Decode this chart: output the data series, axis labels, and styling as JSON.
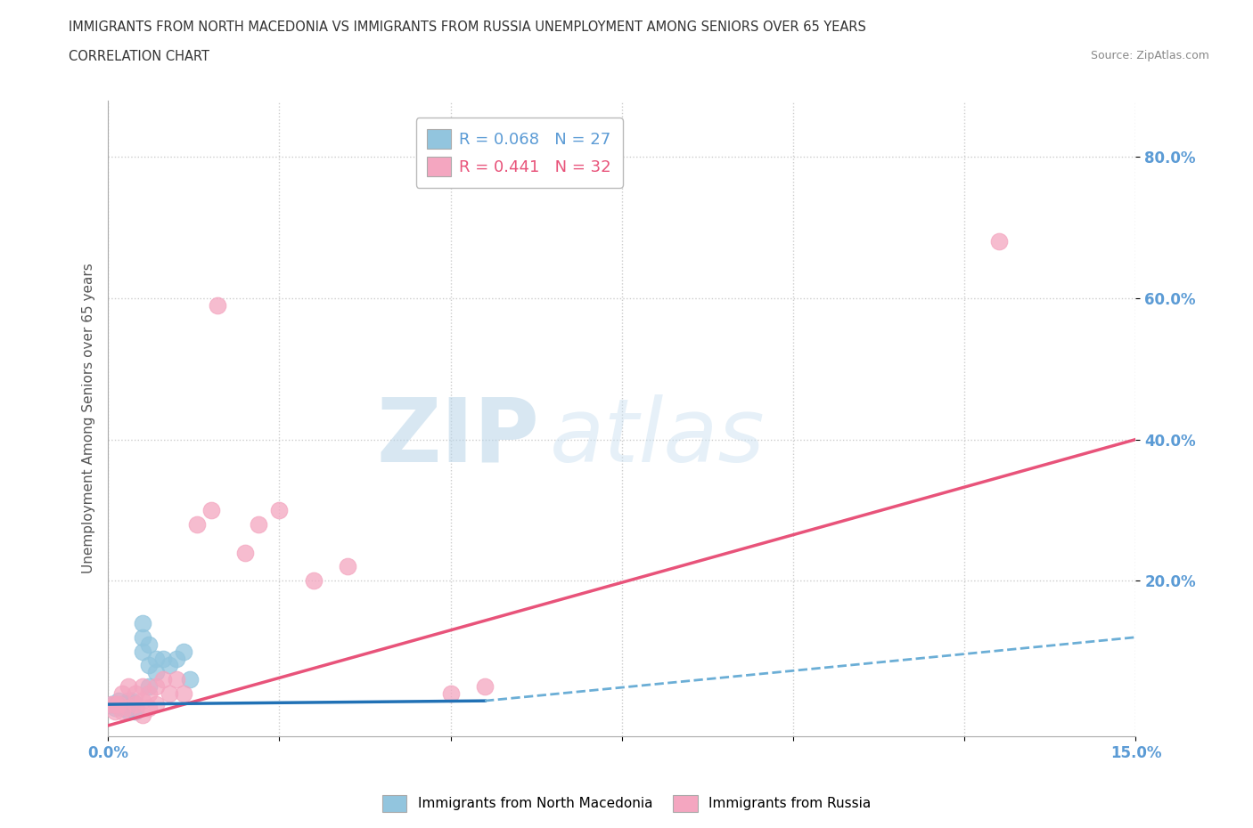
{
  "title_line1": "IMMIGRANTS FROM NORTH MACEDONIA VS IMMIGRANTS FROM RUSSIA UNEMPLOYMENT AMONG SENIORS OVER 65 YEARS",
  "title_line2": "CORRELATION CHART",
  "source": "Source: ZipAtlas.com",
  "ylabel": "Unemployment Among Seniors over 65 years",
  "ytick_labels": [
    "80.0%",
    "60.0%",
    "40.0%",
    "20.0%"
  ],
  "ytick_values": [
    0.8,
    0.6,
    0.4,
    0.2
  ],
  "legend_mac": "R = 0.068   N = 27",
  "legend_rus": "R = 0.441   N = 32",
  "color_mac": "#92c5de",
  "color_rus": "#f4a6c0",
  "color_mac_line_solid": "#2171b5",
  "color_mac_line_dash": "#6baed6",
  "color_rus_line": "#e8537a",
  "watermark_zip": "ZIP",
  "watermark_atlas": "atlas",
  "xlim": [
    0.0,
    0.15
  ],
  "ylim": [
    -0.02,
    0.88
  ],
  "background_color": "#ffffff",
  "grid_color": "#cccccc",
  "mac_x": [
    0.0005,
    0.001,
    0.001,
    0.0015,
    0.002,
    0.002,
    0.0025,
    0.003,
    0.003,
    0.003,
    0.0035,
    0.004,
    0.004,
    0.004,
    0.005,
    0.005,
    0.005,
    0.006,
    0.006,
    0.006,
    0.007,
    0.007,
    0.008,
    0.009,
    0.01,
    0.011,
    0.012
  ],
  "mac_y": [
    0.025,
    0.025,
    0.02,
    0.03,
    0.025,
    0.02,
    0.025,
    0.03,
    0.025,
    0.015,
    0.03,
    0.025,
    0.02,
    0.015,
    0.14,
    0.12,
    0.1,
    0.11,
    0.08,
    0.05,
    0.09,
    0.07,
    0.09,
    0.08,
    0.09,
    0.1,
    0.06
  ],
  "rus_x": [
    0.0005,
    0.001,
    0.001,
    0.0015,
    0.002,
    0.002,
    0.003,
    0.003,
    0.004,
    0.004,
    0.005,
    0.005,
    0.005,
    0.006,
    0.006,
    0.007,
    0.007,
    0.008,
    0.009,
    0.01,
    0.011,
    0.013,
    0.015,
    0.016,
    0.02,
    0.022,
    0.025,
    0.03,
    0.035,
    0.05,
    0.055,
    0.13
  ],
  "rus_y": [
    0.025,
    0.025,
    0.015,
    0.025,
    0.04,
    0.015,
    0.05,
    0.02,
    0.04,
    0.025,
    0.05,
    0.03,
    0.01,
    0.04,
    0.02,
    0.05,
    0.025,
    0.06,
    0.04,
    0.06,
    0.04,
    0.28,
    0.3,
    0.59,
    0.24,
    0.28,
    0.3,
    0.2,
    0.22,
    0.04,
    0.05,
    0.68
  ],
  "trendline_rus_x0": 0.0,
  "trendline_rus_y0": -0.005,
  "trendline_rus_x1": 0.15,
  "trendline_rus_y1": 0.4,
  "trendline_mac_solid_x0": 0.0,
  "trendline_mac_solid_y0": 0.025,
  "trendline_mac_solid_x1": 0.055,
  "trendline_mac_solid_y1": 0.03,
  "trendline_mac_dash_x0": 0.055,
  "trendline_mac_dash_y0": 0.03,
  "trendline_mac_dash_x1": 0.15,
  "trendline_mac_dash_y1": 0.12
}
